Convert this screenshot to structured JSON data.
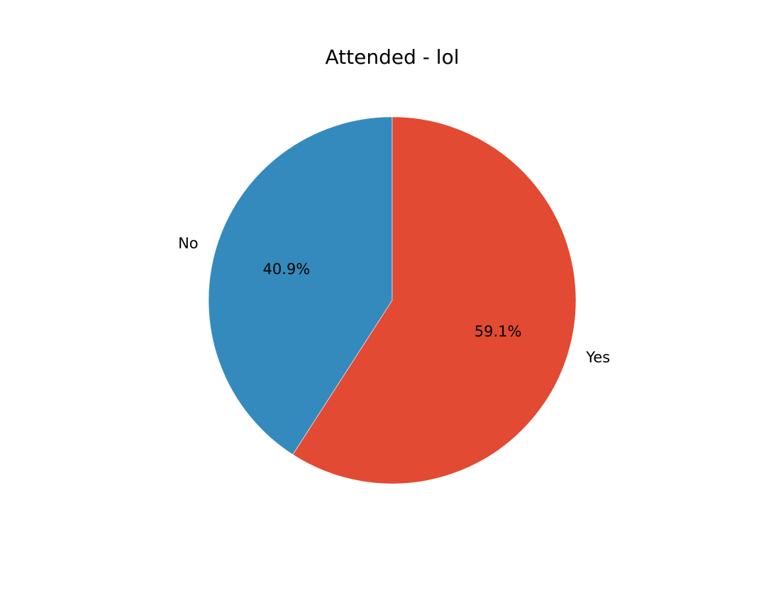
{
  "chart_data": {
    "type": "pie",
    "title": "Attended - lol",
    "slices": [
      {
        "label": "No",
        "value": 40.9,
        "pct_label": "40.9%",
        "color": "#348ABD"
      },
      {
        "label": "Yes",
        "value": 59.1,
        "pct_label": "59.1%",
        "color": "#E24A33"
      }
    ],
    "start_angle_deg": 90,
    "direction": "counterclockwise",
    "legend": "none"
  }
}
